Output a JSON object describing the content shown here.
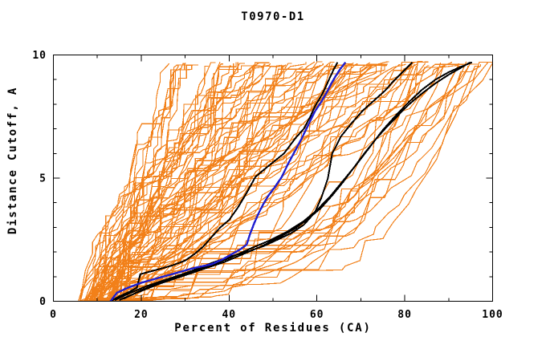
{
  "chart_data": {
    "type": "line",
    "title": "T0970-D1",
    "xlabel": "Percent of Residues (CA)",
    "ylabel": "Distance Cutoff, A",
    "xlim": [
      0,
      100
    ],
    "ylim": [
      0,
      10
    ],
    "x_major_ticks": [
      0,
      20,
      40,
      60,
      80,
      100
    ],
    "x_minor_ticks": [
      10,
      30,
      50,
      70,
      90
    ],
    "y_major_ticks": [
      0,
      5,
      10
    ],
    "y_minor_ticks": [
      1,
      2,
      3,
      4,
      6,
      7,
      8,
      9
    ],
    "grid": false,
    "legend": false,
    "tick_style": "inward on all four frame edges",
    "colors": {
      "ensemble_orange": "#f28019",
      "highlight_blue": "#1f1fd1",
      "reference_black": "#000000",
      "frame": "#000000",
      "background": "#ffffff"
    },
    "series": {
      "blue_model": {
        "name": "highlighted model (blue)",
        "color_key": "highlight_blue",
        "points": [
          [
            13,
            0
          ],
          [
            14.5,
            0.35
          ],
          [
            17,
            0.55
          ],
          [
            20,
            0.75
          ],
          [
            24,
            0.95
          ],
          [
            28,
            1.15
          ],
          [
            32,
            1.35
          ],
          [
            36,
            1.5
          ],
          [
            38.5,
            1.7
          ],
          [
            40.5,
            1.9
          ],
          [
            42.5,
            2.1
          ],
          [
            44,
            2.3
          ],
          [
            44.8,
            2.75
          ],
          [
            45.8,
            3.2
          ],
          [
            46.8,
            3.6
          ],
          [
            47.8,
            3.95
          ],
          [
            49,
            4.3
          ],
          [
            50.5,
            4.65
          ],
          [
            52,
            5.05
          ],
          [
            53.5,
            5.6
          ],
          [
            55,
            6.1
          ],
          [
            56.5,
            6.6
          ],
          [
            58,
            7.15
          ],
          [
            59.5,
            7.7
          ],
          [
            61,
            8.1
          ],
          [
            62.3,
            8.5
          ],
          [
            63.3,
            8.85
          ],
          [
            64.3,
            9.15
          ],
          [
            65.4,
            9.45
          ],
          [
            66.5,
            9.7
          ]
        ]
      },
      "black_models": [
        {
          "name": "reference model 1 (black, steep)",
          "points": [
            [
              13,
              0
            ],
            [
              15,
              0.2
            ],
            [
              17.5,
              0.4
            ],
            [
              19,
              0.55
            ],
            [
              19.8,
              1.1
            ],
            [
              23,
              1.25
            ],
            [
              27,
              1.45
            ],
            [
              30,
              1.65
            ],
            [
              32,
              1.9
            ],
            [
              34,
              2.2
            ],
            [
              36,
              2.6
            ],
            [
              38,
              3.0
            ],
            [
              40,
              3.3
            ],
            [
              42,
              3.8
            ],
            [
              44,
              4.4
            ],
            [
              46,
              5.05
            ],
            [
              49,
              5.5
            ],
            [
              52.5,
              6.0
            ],
            [
              55,
              6.6
            ],
            [
              57,
              7.0
            ],
            [
              58.5,
              7.5
            ],
            [
              59.5,
              7.9
            ],
            [
              61,
              8.35
            ],
            [
              62,
              8.7
            ],
            [
              63,
              9.1
            ],
            [
              63.8,
              9.4
            ],
            [
              64.7,
              9.7
            ]
          ]
        },
        {
          "name": "reference model 2 (black, tops near 82%)",
          "points": [
            [
              14,
              0.05
            ],
            [
              17,
              0.3
            ],
            [
              21,
              0.6
            ],
            [
              26,
              0.9
            ],
            [
              31,
              1.2
            ],
            [
              36,
              1.55
            ],
            [
              40,
              1.8
            ],
            [
              44,
              2.0
            ],
            [
              48,
              2.25
            ],
            [
              51,
              2.5
            ],
            [
              54,
              2.75
            ],
            [
              57,
              3.1
            ],
            [
              59.5,
              3.6
            ],
            [
              61,
              4.2
            ],
            [
              62.5,
              5.0
            ],
            [
              63.5,
              6.0
            ],
            [
              65.5,
              6.7
            ],
            [
              68,
              7.25
            ],
            [
              70.5,
              7.75
            ],
            [
              73,
              8.15
            ],
            [
              75.5,
              8.55
            ],
            [
              77.5,
              8.95
            ],
            [
              79.5,
              9.3
            ],
            [
              81.7,
              9.7
            ]
          ]
        },
        {
          "name": "reference model 3 (black, tops near 95%)",
          "points": [
            [
              15,
              0.05
            ],
            [
              19,
              0.35
            ],
            [
              24,
              0.7
            ],
            [
              29,
              1.0
            ],
            [
              34,
              1.3
            ],
            [
              39,
              1.6
            ],
            [
              43,
              1.9
            ],
            [
              47,
              2.2
            ],
            [
              51,
              2.55
            ],
            [
              55,
              2.95
            ],
            [
              58,
              3.35
            ],
            [
              61,
              3.8
            ],
            [
              63.5,
              4.3
            ],
            [
              66,
              4.85
            ],
            [
              68.5,
              5.45
            ],
            [
              71,
              6.05
            ],
            [
              73.5,
              6.6
            ],
            [
              76,
              7.1
            ],
            [
              78.5,
              7.55
            ],
            [
              81,
              8.0
            ],
            [
              84,
              8.45
            ],
            [
              87,
              8.85
            ],
            [
              90,
              9.2
            ],
            [
              92.5,
              9.45
            ],
            [
              94.9,
              9.7
            ]
          ]
        },
        {
          "name": "reference model 4 (black, tops near 95%)",
          "points": [
            [
              16,
              0.1
            ],
            [
              20,
              0.45
            ],
            [
              25,
              0.8
            ],
            [
              30,
              1.1
            ],
            [
              35,
              1.4
            ],
            [
              40,
              1.75
            ],
            [
              45,
              2.15
            ],
            [
              49,
              2.45
            ],
            [
              53,
              2.8
            ],
            [
              57,
              3.25
            ],
            [
              60,
              3.7
            ],
            [
              63,
              4.25
            ],
            [
              66,
              4.9
            ],
            [
              69,
              5.55
            ],
            [
              72,
              6.25
            ],
            [
              75,
              6.95
            ],
            [
              78,
              7.55
            ],
            [
              81,
              8.1
            ],
            [
              84,
              8.6
            ],
            [
              87,
              9.0
            ],
            [
              90,
              9.3
            ],
            [
              92.5,
              9.5
            ],
            [
              95.3,
              9.7
            ]
          ]
        }
      ],
      "orange_ensemble": {
        "name": "server model ensemble (orange)",
        "color_key": "ensemble_orange",
        "count": 88,
        "seed": 20970,
        "start_x_range": [
          5.5,
          15
        ],
        "top_x_range": [
          25,
          100
        ],
        "top_y": 9.7,
        "style": "jagged monotone cumulative curves fanning from lower-left toward upper-right"
      }
    }
  }
}
